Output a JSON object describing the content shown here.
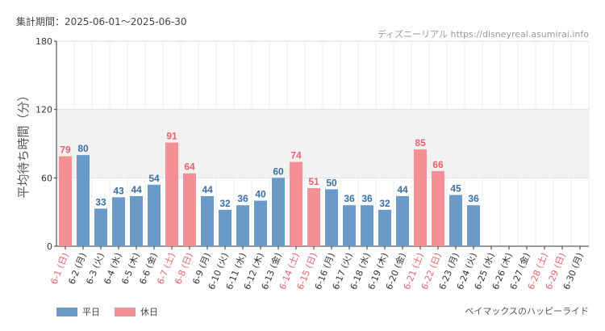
{
  "header": {
    "period": "集計期間：2025-06-01～2025-06-30",
    "source": "ディズニーリアル https://disneyreal.asumirai.info"
  },
  "footer": {
    "attraction": "ベイマックスのハッピーライド"
  },
  "legend": {
    "weekday": "平日",
    "holiday": "休日"
  },
  "colors": {
    "weekday": "#6a9ac8",
    "holiday": "#f48f95",
    "weekday_text": "#3a6ea5",
    "holiday_text": "#e8636b",
    "band": "#f2f2f2"
  },
  "chart_data": {
    "type": "bar",
    "ylabel": "平均待ち時間（分）",
    "ylim": [
      0,
      180
    ],
    "yticks": [
      0,
      60,
      120,
      180
    ],
    "categories": [
      "6-1 (日)",
      "6-2 (月)",
      "6-3 (火)",
      "6-4 (水)",
      "6-5 (木)",
      "6-6 (金)",
      "6-7 (土)",
      "6-8 (日)",
      "6-9 (月)",
      "6-10 (火)",
      "6-11 (水)",
      "6-12 (木)",
      "6-13 (金)",
      "6-14 (土)",
      "6-15 (日)",
      "6-16 (月)",
      "6-17 (火)",
      "6-18 (水)",
      "6-19 (木)",
      "6-20 (金)",
      "6-21 (土)",
      "6-22 (日)",
      "6-23 (月)",
      "6-24 (火)",
      "6-25 (水)",
      "6-26 (木)",
      "6-27 (金)",
      "6-28 (土)",
      "6-29 (日)",
      "6-30 (月)"
    ],
    "values": [
      79,
      80,
      33,
      43,
      44,
      54,
      91,
      64,
      44,
      32,
      36,
      40,
      60,
      74,
      51,
      50,
      36,
      36,
      32,
      44,
      85,
      66,
      45,
      36,
      null,
      null,
      null,
      null,
      null,
      null
    ],
    "holiday": [
      true,
      false,
      false,
      false,
      false,
      false,
      true,
      true,
      false,
      false,
      false,
      false,
      false,
      true,
      true,
      false,
      false,
      false,
      false,
      false,
      true,
      true,
      false,
      false,
      false,
      false,
      false,
      true,
      true,
      false
    ]
  }
}
